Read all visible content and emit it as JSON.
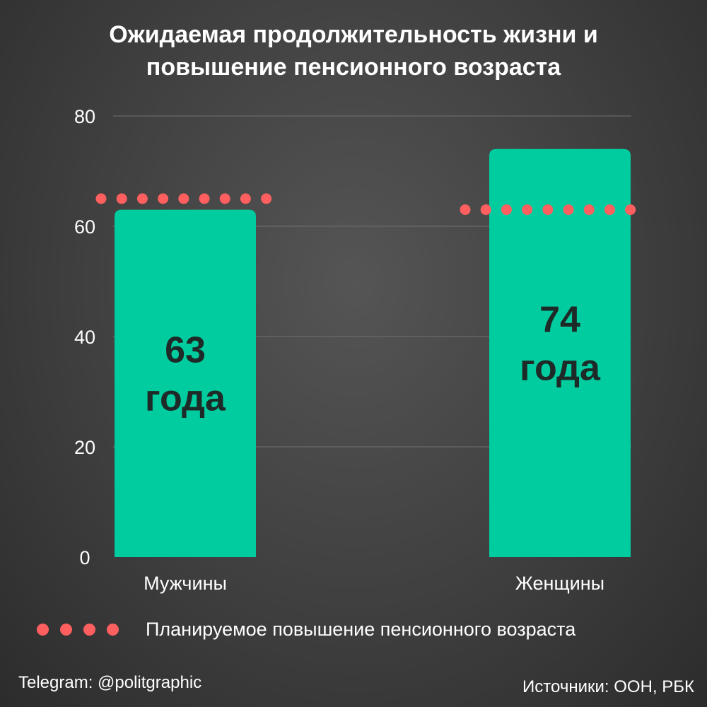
{
  "title_lines": [
    "Ожидаемая продолжительность жизни и",
    "повышение пенсионного возраста"
  ],
  "chart_data": {
    "type": "bar",
    "categories": [
      "Мужчины",
      "Женщины"
    ],
    "values": [
      63,
      74
    ],
    "bar_labels": [
      [
        "63",
        "года"
      ],
      [
        "74",
        "года"
      ]
    ],
    "planned_retirement_age": [
      65,
      63
    ],
    "ylim": [
      0,
      80
    ],
    "yticks": [
      0,
      20,
      40,
      60,
      80
    ],
    "grid": true,
    "legend": {
      "label": "Планируемое повышение пенсионного возраста",
      "placement": "bottom-left"
    }
  },
  "colors": {
    "bar": "#00cc9f",
    "dots": "#ff5f5f",
    "bar_label": "#1e2a27",
    "grid": "#707070",
    "text": "#ffffff"
  },
  "footer": {
    "left": "Telegram: @politgraphic",
    "right": "Источники: ООН, РБК"
  }
}
